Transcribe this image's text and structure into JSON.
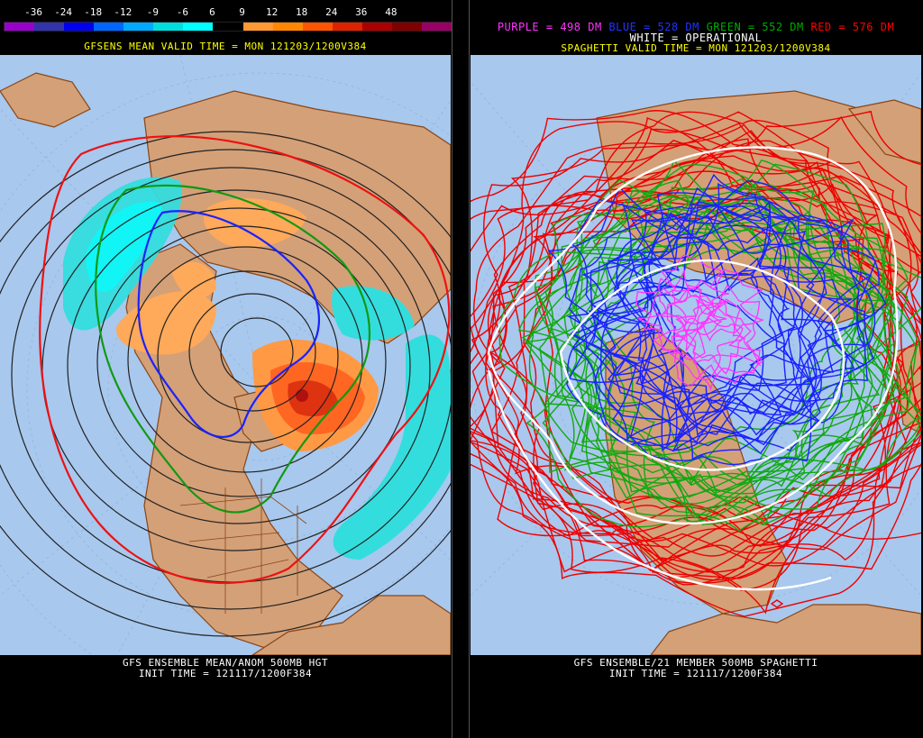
{
  "left": {
    "scale_labels": [
      "-36",
      "-24",
      "-18",
      "-12",
      "-9",
      "-6",
      "6",
      "9",
      "12",
      "18",
      "24",
      "36",
      "48"
    ],
    "scale_colors": [
      "#9900cc",
      "#3333aa",
      "#0000ee",
      "#0066ff",
      "#00aaff",
      "#00dddd",
      "#00ffff",
      "#000000",
      "#ff9933",
      "#ff8800",
      "#ff5500",
      "#dd2200",
      "#aa0000",
      "#800000",
      "#990066"
    ],
    "title": "GFSENS MEAN VALID TIME = MON 121203/1200V384",
    "footer_line1": "GFS ENSEMBLE MEAN/ANOM 500MB HGT",
    "footer_line2": "INIT TIME = 121117/1200F384"
  },
  "right": {
    "legend": [
      {
        "text": "PURPLE = 498 DM",
        "color": "#ff33ff"
      },
      {
        "text": "BLUE = 528 DM",
        "color": "#2233ff"
      },
      {
        "text": "GREEN = 552 DM",
        "color": "#00aa00"
      },
      {
        "text": "RED = 576 DM",
        "color": "#ff0000"
      }
    ],
    "operational": "WHITE = OPERATIONAL",
    "title": "SPAGHETTI VALID TIME = MON 121203/1200V384",
    "footer_line1": "GFS ENSEMBLE/21 MEMBER 500MB SPAGHETTI",
    "footer_line2": "INIT TIME = 121117/1200F384"
  },
  "colors": {
    "ocean": "#a8c8ee",
    "land": "#d4a078",
    "border": "#8b4513",
    "text_yellow": "#ffff00",
    "text_white": "#ffffff"
  }
}
